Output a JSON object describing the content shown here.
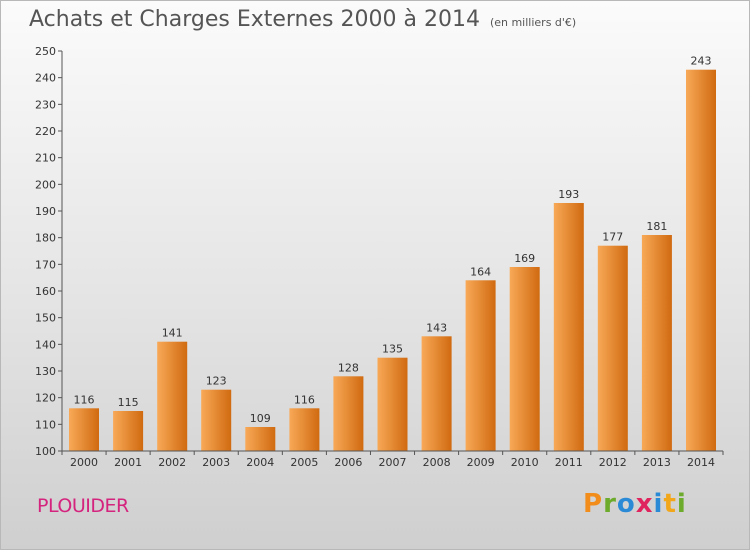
{
  "title": "Achats et Charges Externes 2000 à 2014",
  "subtitle": "(en milliers d'€)",
  "commune": "PLOUIDER",
  "logo": {
    "text": "Proxiti",
    "letters": [
      {
        "ch": "P",
        "color": "#f28c1a"
      },
      {
        "ch": "r",
        "color": "#6cab2c"
      },
      {
        "ch": "o",
        "color": "#2b8ad6"
      },
      {
        "ch": "x",
        "color": "#e0245e"
      },
      {
        "ch": "i",
        "color": "#2b8ad6"
      },
      {
        "ch": "t",
        "color": "#f2a71a"
      },
      {
        "ch": "i",
        "color": "#6cab2c"
      }
    ]
  },
  "colors": {
    "bar_light": "#f8a957",
    "bar_dark": "#d06a10",
    "axis": "#555555",
    "grid": "#cccccc"
  },
  "chart_data": {
    "type": "bar",
    "categories": [
      "2000",
      "2001",
      "2002",
      "2003",
      "2004",
      "2005",
      "2006",
      "2007",
      "2008",
      "2009",
      "2010",
      "2011",
      "2012",
      "2013",
      "2014"
    ],
    "values": [
      116,
      115,
      141,
      123,
      109,
      116,
      128,
      135,
      143,
      164,
      169,
      193,
      177,
      181,
      243
    ],
    "title": "Achats et Charges Externes 2000 à 2014",
    "subtitle": "(en milliers d'€)",
    "xlabel": "",
    "ylabel": "",
    "ylim": [
      100,
      250
    ],
    "yticks": [
      100,
      110,
      120,
      130,
      140,
      150,
      160,
      170,
      180,
      190,
      200,
      210,
      220,
      230,
      240,
      250
    ],
    "grid": false,
    "data_labels": true
  }
}
